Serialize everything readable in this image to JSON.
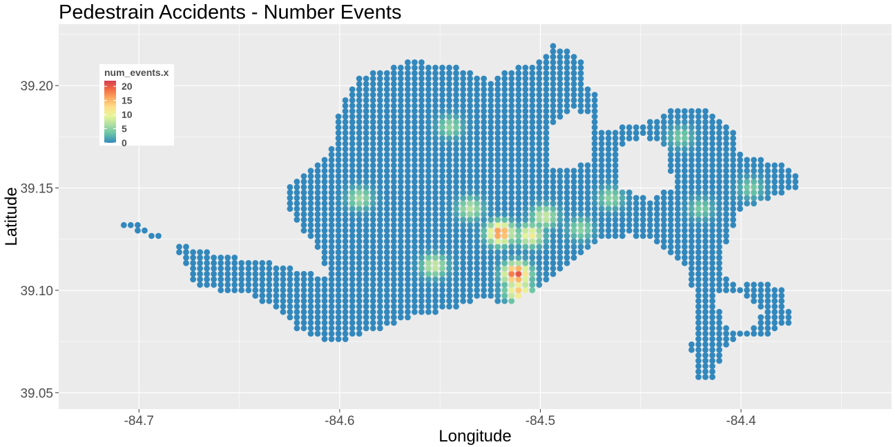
{
  "chart_data": {
    "type": "scatter",
    "title": "Pedestrain Accidents - Number Events",
    "xlabel": "Longitude",
    "ylabel": "Latitude",
    "xlim": [
      -84.74,
      -84.325
    ],
    "ylim": [
      39.042,
      39.23
    ],
    "x_ticks": [
      -84.7,
      -84.6,
      -84.5,
      -84.4
    ],
    "x_tick_labels": [
      "-84.7",
      "-84.6",
      "-84.5",
      "-84.4"
    ],
    "y_ticks": [
      39.05,
      39.1,
      39.15,
      39.2
    ],
    "y_tick_labels": [
      "39.05",
      "39.10",
      "39.15",
      "39.20"
    ],
    "grid": true,
    "panel_background": "#ebebeb",
    "grid_color": "#ffffff",
    "point_spacing_deg": {
      "lon": 0.00345,
      "lat": 0.00265
    },
    "legend": {
      "title": "num_events.x",
      "placement": "top-left inside",
      "breaks": [
        20,
        15,
        10,
        5,
        0
      ],
      "break_labels": [
        "20",
        "15",
        "10",
        "5",
        "0"
      ],
      "range": [
        0,
        22
      ],
      "colors": [
        "#3288bd",
        "#66c2a5",
        "#abdda4",
        "#e6f598",
        "#fee08b",
        "#fdae61",
        "#f46d43",
        "#d53e4f"
      ]
    },
    "region_outline": [
      [
        -84.711,
        39.131
      ],
      [
        -84.703,
        39.133
      ],
      [
        -84.685,
        39.125
      ],
      [
        -84.678,
        39.115
      ],
      [
        -84.672,
        39.103
      ],
      [
        -84.66,
        39.1
      ],
      [
        -84.645,
        39.098
      ],
      [
        -84.63,
        39.09
      ],
      [
        -84.62,
        39.08
      ],
      [
        -84.605,
        39.074
      ],
      [
        -84.59,
        39.078
      ],
      [
        -84.57,
        39.084
      ],
      [
        -84.56,
        39.088
      ],
      [
        -84.545,
        39.09
      ],
      [
        -84.53,
        39.096
      ],
      [
        -84.515,
        39.093
      ],
      [
        -84.495,
        39.105
      ],
      [
        -84.48,
        39.117
      ],
      [
        -84.47,
        39.125
      ],
      [
        -84.455,
        39.127
      ],
      [
        -84.445,
        39.124
      ],
      [
        -84.437,
        39.12
      ],
      [
        -84.428,
        39.112
      ],
      [
        -84.424,
        39.1
      ],
      [
        -84.422,
        39.088
      ],
      [
        -84.425,
        39.072
      ],
      [
        -84.422,
        39.055
      ],
      [
        -84.413,
        39.058
      ],
      [
        -84.407,
        39.072
      ],
      [
        -84.4,
        39.078
      ],
      [
        -84.385,
        39.078
      ],
      [
        -84.375,
        39.085
      ],
      [
        -84.378,
        39.1
      ],
      [
        -84.388,
        39.104
      ],
      [
        -84.403,
        39.102
      ],
      [
        -84.41,
        39.108
      ],
      [
        -84.407,
        39.125
      ],
      [
        -84.4,
        39.14
      ],
      [
        -84.385,
        39.145
      ],
      [
        -84.372,
        39.15
      ],
      [
        -84.372,
        39.155
      ],
      [
        -84.38,
        39.162
      ],
      [
        -84.4,
        39.166
      ],
      [
        -84.405,
        39.18
      ],
      [
        -84.42,
        39.19
      ],
      [
        -84.435,
        39.188
      ],
      [
        -84.442,
        39.183
      ],
      [
        -84.458,
        39.18
      ],
      [
        -84.47,
        39.178
      ],
      [
        -84.47,
        39.195
      ],
      [
        -84.478,
        39.2
      ],
      [
        -84.48,
        39.215
      ],
      [
        -84.495,
        39.22
      ],
      [
        -84.5,
        39.212
      ],
      [
        -84.51,
        39.21
      ],
      [
        -84.525,
        39.203
      ],
      [
        -84.545,
        39.21
      ],
      [
        -84.565,
        39.212
      ],
      [
        -84.578,
        39.208
      ],
      [
        -84.59,
        39.204
      ],
      [
        -84.6,
        39.19
      ],
      [
        -84.605,
        39.165
      ],
      [
        -84.615,
        39.16
      ],
      [
        -84.625,
        39.152
      ],
      [
        -84.625,
        39.138
      ],
      [
        -84.62,
        39.13
      ],
      [
        -84.61,
        39.12
      ],
      [
        -84.605,
        39.105
      ],
      [
        -84.62,
        39.11
      ],
      [
        -84.64,
        39.115
      ],
      [
        -84.66,
        39.117
      ],
      [
        -84.68,
        39.123
      ]
    ],
    "holes": [
      [
        [
          -84.495,
          39.18
        ],
        [
          -84.483,
          39.188
        ],
        [
          -84.475,
          39.185
        ],
        [
          -84.474,
          39.165
        ],
        [
          -84.485,
          39.158
        ],
        [
          -84.497,
          39.162
        ]
      ],
      [
        [
          -84.461,
          39.17
        ],
        [
          -84.449,
          39.175
        ],
        [
          -84.437,
          39.17
        ],
        [
          -84.434,
          39.15
        ],
        [
          -84.446,
          39.144
        ],
        [
          -84.46,
          39.15
        ]
      ],
      [
        [
          -84.411,
          39.1
        ],
        [
          -84.397,
          39.097
        ],
        [
          -84.389,
          39.089
        ],
        [
          -84.395,
          39.08
        ],
        [
          -84.406,
          39.08
        ],
        [
          -84.411,
          39.09
        ]
      ]
    ],
    "hotspots": [
      {
        "lon": -84.512,
        "lat": 39.108,
        "value": 21
      },
      {
        "lon": -84.52,
        "lat": 39.128,
        "value": 18
      },
      {
        "lon": -84.511,
        "lat": 39.1,
        "value": 14
      },
      {
        "lon": -84.505,
        "lat": 39.127,
        "value": 11
      },
      {
        "lon": -84.498,
        "lat": 39.136,
        "value": 8
      },
      {
        "lon": -84.535,
        "lat": 39.14,
        "value": 7
      },
      {
        "lon": -84.553,
        "lat": 39.112,
        "value": 8
      },
      {
        "lon": -84.59,
        "lat": 39.145,
        "value": 6
      },
      {
        "lon": -84.465,
        "lat": 39.145,
        "value": 5
      },
      {
        "lon": -84.545,
        "lat": 39.18,
        "value": 5
      },
      {
        "lon": -84.48,
        "lat": 39.13,
        "value": 5
      },
      {
        "lon": -84.42,
        "lat": 39.14,
        "value": 4
      },
      {
        "lon": -84.395,
        "lat": 39.15,
        "value": 4
      },
      {
        "lon": -84.43,
        "lat": 39.175,
        "value": 4
      }
    ]
  }
}
